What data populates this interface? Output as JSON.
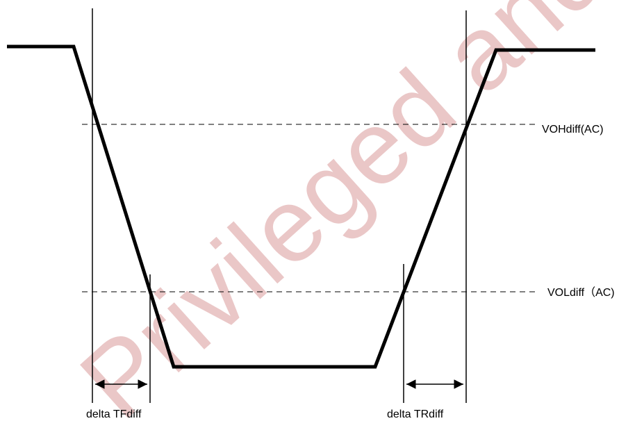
{
  "levels": {
    "voh_label": "VOHdiff(AC)",
    "vol_label": "VOLdiff（AC)"
  },
  "intervals": {
    "fall_label": "delta TFdiff",
    "rise_label": "delta TRdiff"
  },
  "watermark": {
    "text": "Privileged and Confidential",
    "color": "#d99a9a"
  },
  "colors": {
    "waveform": "#000000",
    "background": "#ffffff"
  }
}
